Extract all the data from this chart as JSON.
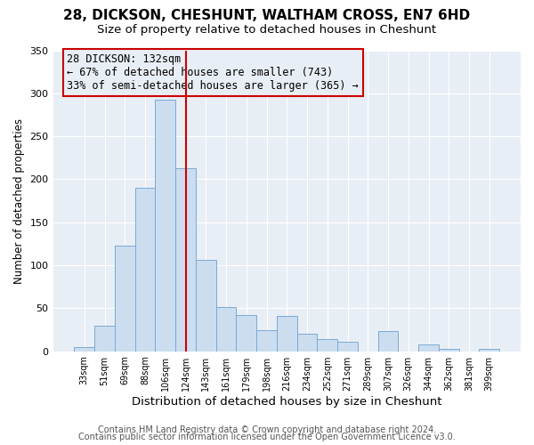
{
  "title": "28, DICKSON, CHESHUNT, WALTHAM CROSS, EN7 6HD",
  "subtitle": "Size of property relative to detached houses in Cheshunt",
  "xlabel": "Distribution of detached houses by size in Cheshunt",
  "ylabel": "Number of detached properties",
  "bar_labels": [
    "33sqm",
    "51sqm",
    "69sqm",
    "88sqm",
    "106sqm",
    "124sqm",
    "143sqm",
    "161sqm",
    "179sqm",
    "198sqm",
    "216sqm",
    "234sqm",
    "252sqm",
    "271sqm",
    "289sqm",
    "307sqm",
    "326sqm",
    "344sqm",
    "362sqm",
    "381sqm",
    "399sqm"
  ],
  "bar_values": [
    5,
    30,
    123,
    190,
    293,
    213,
    106,
    51,
    42,
    24,
    41,
    20,
    14,
    11,
    0,
    23,
    0,
    8,
    3,
    0,
    3
  ],
  "bar_color": "#ccddf0",
  "bar_edgecolor": "#7aaad4",
  "vline_x_index": 5.5,
  "vline_color": "#cc0000",
  "annotation_title": "28 DICKSON: 132sqm",
  "annotation_line1": "← 67% of detached houses are smaller (743)",
  "annotation_line2": "33% of semi-detached houses are larger (365) →",
  "annotation_box_color": "#cc0000",
  "ylim": [
    0,
    350
  ],
  "yticks": [
    0,
    50,
    100,
    150,
    200,
    250,
    300,
    350
  ],
  "footer1": "Contains HM Land Registry data © Crown copyright and database right 2024.",
  "footer2": "Contains public sector information licensed under the Open Government Licence v3.0.",
  "plot_bg_color": "#e8eef5",
  "fig_bg_color": "#ffffff",
  "title_fontsize": 11,
  "subtitle_fontsize": 9.5,
  "xlabel_fontsize": 9.5,
  "ylabel_fontsize": 8.5,
  "footer_fontsize": 7,
  "ann_fontsize": 8.5
}
